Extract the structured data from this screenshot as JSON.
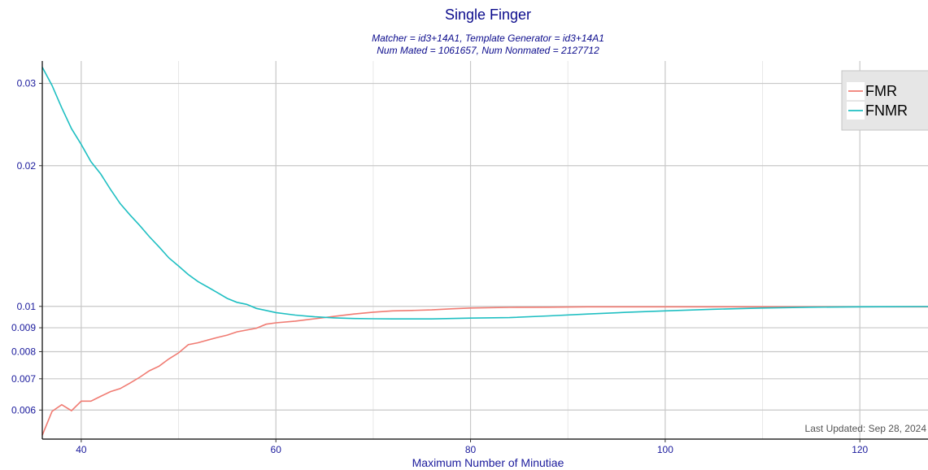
{
  "chart_data": {
    "type": "line",
    "title": "Single Finger",
    "subtitle_line1": "Matcher = id3+14A1, Template Generator = id3+14A1",
    "subtitle_line2": "Num Mated = 1061657, Num Nonmated = 2127712",
    "xlabel": "Maximum Number of Minutiae",
    "ylabel": "",
    "y_scale": "log",
    "xlim": [
      36,
      127
    ],
    "ylim": [
      0.0052,
      0.0335
    ],
    "x_ticks": [
      40,
      60,
      80,
      100,
      120
    ],
    "x_tick_labels": [
      "40",
      "60",
      "80",
      "100",
      "120"
    ],
    "y_ticks": [
      0.006,
      0.007,
      0.008,
      0.009,
      0.01,
      0.02,
      0.03
    ],
    "y_tick_labels": [
      "0.006",
      "0.007",
      "0.008",
      "0.009",
      "0.01",
      "0.02",
      "0.03"
    ],
    "grid": true,
    "legend_position": "top-right",
    "footnote": "Last Updated: Sep 28, 2024",
    "series": [
      {
        "name": "FMR",
        "color": "#f07b72",
        "x": [
          36,
          37,
          38,
          39,
          40,
          41,
          42,
          43,
          44,
          45,
          46,
          47,
          48,
          49,
          50,
          51,
          52,
          53,
          54,
          55,
          56,
          57,
          58,
          59,
          60,
          62,
          64,
          66,
          68,
          70,
          72,
          74,
          76,
          78,
          80,
          84,
          88,
          92,
          96,
          100,
          105,
          110,
          115,
          120,
          127
        ],
        "y": [
          0.0053,
          0.00596,
          0.00616,
          0.00598,
          0.00627,
          0.00627,
          0.00642,
          0.00657,
          0.00667,
          0.00685,
          0.00705,
          0.00728,
          0.00745,
          0.00772,
          0.00795,
          0.00828,
          0.00836,
          0.00847,
          0.00858,
          0.00868,
          0.00882,
          0.0089,
          0.00898,
          0.00916,
          0.00922,
          0.0093,
          0.00941,
          0.00952,
          0.00963,
          0.00972,
          0.00978,
          0.0098,
          0.00983,
          0.00988,
          0.00992,
          0.00995,
          0.00996,
          0.00998,
          0.00998,
          0.00998,
          0.00998,
          0.00998,
          0.00998,
          0.00998,
          0.00998
        ]
      },
      {
        "name": "FNMR",
        "color": "#1fbfc2",
        "x": [
          36,
          37,
          38,
          39,
          40,
          41,
          42,
          43,
          44,
          45,
          46,
          47,
          48,
          49,
          50,
          51,
          52,
          53,
          54,
          55,
          56,
          57,
          58,
          59,
          60,
          62,
          64,
          66,
          68,
          70,
          72,
          74,
          76,
          78,
          80,
          84,
          88,
          92,
          96,
          100,
          105,
          110,
          115,
          120,
          127
        ],
        "y": [
          0.0325,
          0.0297,
          0.0266,
          0.024,
          0.0222,
          0.0204,
          0.0192,
          0.0178,
          0.0166,
          0.0157,
          0.0149,
          0.0141,
          0.0134,
          0.0127,
          0.0122,
          0.0117,
          0.0113,
          0.011,
          0.0107,
          0.0104,
          0.0102,
          0.0101,
          0.0099,
          0.0098,
          0.0097,
          0.00958,
          0.0095,
          0.00945,
          0.00942,
          0.00941,
          0.0094,
          0.0094,
          0.0094,
          0.00942,
          0.00944,
          0.00946,
          0.00954,
          0.00963,
          0.00971,
          0.00978,
          0.00986,
          0.00992,
          0.00996,
          0.00998,
          0.00999
        ]
      }
    ]
  }
}
